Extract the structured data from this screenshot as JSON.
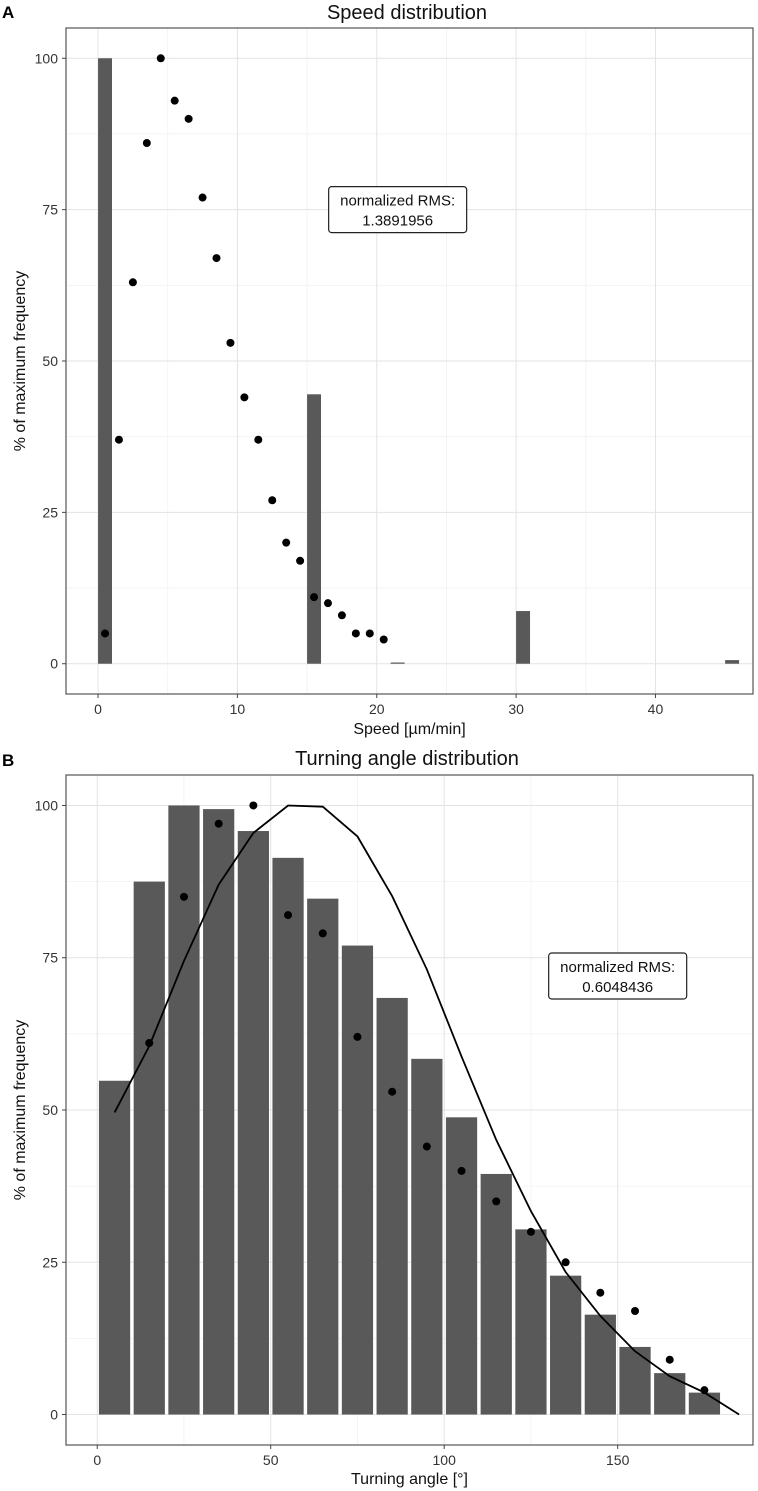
{
  "chart_data": [
    {
      "panel": "A",
      "type": "bar",
      "title": "Speed distribution",
      "xlabel": "Speed [µm/min]",
      "ylabel": "% of maximum frequency",
      "xlim": [
        -2.3,
        47
      ],
      "ylim": [
        -5,
        105
      ],
      "xticks": [
        0,
        10,
        20,
        30,
        40
      ],
      "yticks": [
        0,
        25,
        50,
        75,
        100
      ],
      "grid": true,
      "bars": {
        "width": 1,
        "x": [
          0.5,
          15.5,
          21.5,
          30.5,
          45.5
        ],
        "values": [
          100,
          44.5,
          0.2,
          8.7,
          0.6
        ]
      },
      "points": {
        "x": [
          0.5,
          1.5,
          2.5,
          3.5,
          4.5,
          5.5,
          6.5,
          7.5,
          8.5,
          9.5,
          10.5,
          11.5,
          12.5,
          13.5,
          14.5,
          15.5,
          16.5,
          17.5,
          18.5,
          19.5,
          20.5
        ],
        "y": [
          5,
          37,
          63,
          86,
          100,
          93,
          90,
          77,
          67,
          53,
          44,
          37,
          27,
          20,
          17,
          11,
          10,
          8,
          5,
          5,
          4
        ]
      },
      "annotation": {
        "x": 21.5,
        "y": 75,
        "lines": [
          "normalized RMS:",
          "1.3891956"
        ]
      }
    },
    {
      "panel": "B",
      "type": "bar",
      "title": "Turning angle distribution",
      "xlabel": "Turning angle [°]",
      "ylabel": "% of maximum frequency",
      "xlim": [
        -9,
        189
      ],
      "ylim": [
        -5,
        105
      ],
      "xticks": [
        0,
        50,
        100,
        150
      ],
      "yticks": [
        0,
        25,
        50,
        75,
        100
      ],
      "grid": true,
      "bars": {
        "width": 9,
        "x": [
          5,
          15,
          25,
          35,
          45,
          55,
          65,
          75,
          85,
          95,
          105,
          115,
          125,
          135,
          145,
          155,
          165,
          175
        ],
        "values": [
          54.8,
          87.5,
          100,
          99.4,
          95.8,
          91.4,
          84.7,
          77,
          68.4,
          58.4,
          48.8,
          39.5,
          30.4,
          22.8,
          16.4,
          11.1,
          6.8,
          3.6
        ]
      },
      "points": {
        "x": [
          15,
          25,
          35,
          45,
          55,
          65,
          75,
          85,
          95,
          105,
          115,
          125,
          135,
          145,
          155,
          165,
          175
        ],
        "y": [
          61,
          85,
          97,
          100,
          82,
          79,
          62,
          53,
          44,
          40,
          35,
          30,
          25,
          20,
          17,
          9,
          4
        ]
      },
      "line": {
        "x": [
          5,
          15,
          25,
          35,
          45,
          55,
          65,
          75,
          85,
          95,
          105,
          115,
          125,
          135,
          145,
          155,
          165,
          175,
          185
        ],
        "y": [
          49.6,
          60.5,
          74.5,
          87,
          95.5,
          100,
          99.8,
          94.9,
          85.1,
          73.1,
          58.8,
          45.1,
          33.4,
          23.4,
          16.2,
          10.4,
          6.3,
          3.6,
          0
        ]
      },
      "annotation": {
        "x": 150,
        "y": 72,
        "lines": [
          "normalized RMS:",
          "0.6048436"
        ]
      }
    }
  ]
}
